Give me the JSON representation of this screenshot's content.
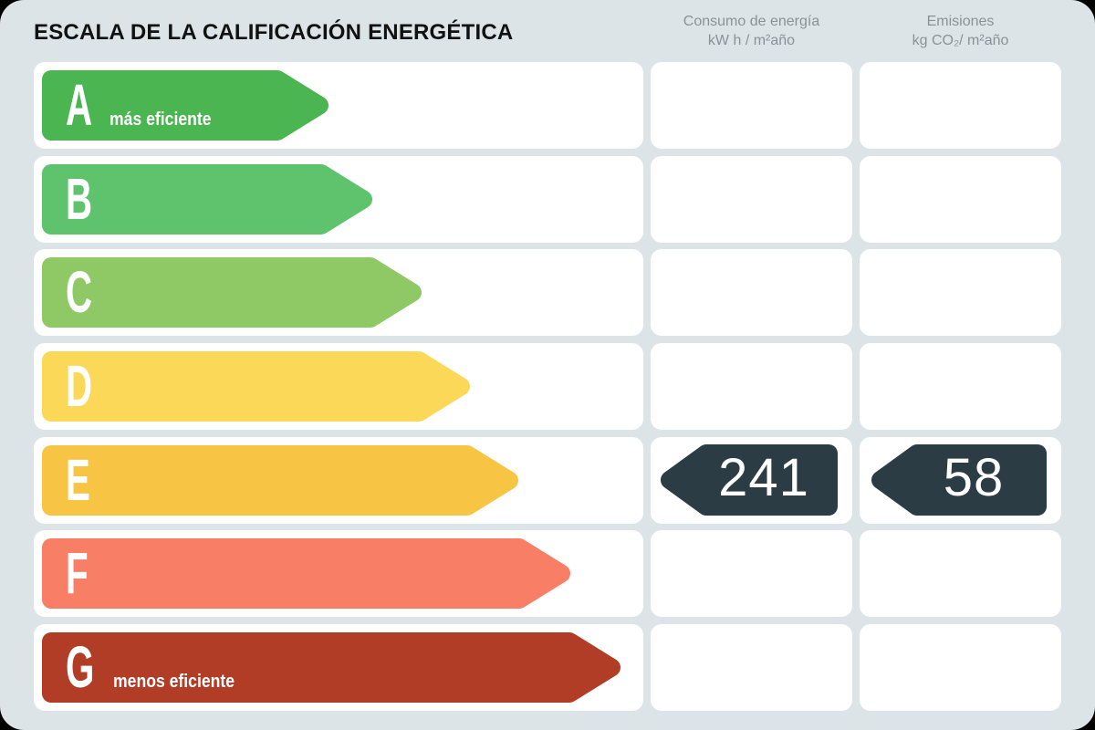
{
  "title": "ESCALA DE LA CALIFICACIÓN ENERGÉTICA",
  "columns": {
    "consumption": {
      "line1": "Consumo de energía",
      "line2": "kW h / m²año"
    },
    "emissions": {
      "line1": "Emisiones",
      "line2": "kg CO₂/ m²año"
    }
  },
  "scale": {
    "rows": [
      {
        "grade": "A",
        "label": "más eficiente",
        "color": "#4ab551",
        "arrow_width": 314
      },
      {
        "grade": "B",
        "label": "",
        "color": "#5fc36d",
        "arrow_width": 362
      },
      {
        "grade": "C",
        "label": "",
        "color": "#8ec966",
        "arrow_width": 416
      },
      {
        "grade": "D",
        "label": "",
        "color": "#fbd857",
        "arrow_width": 469
      },
      {
        "grade": "E",
        "label": "",
        "color": "#f8c444",
        "arrow_width": 522
      },
      {
        "grade": "F",
        "label": "",
        "color": "#f87f66",
        "arrow_width": 579
      },
      {
        "grade": "G",
        "label": "menos eficiente",
        "color": "#b23d27",
        "arrow_width": 634
      }
    ]
  },
  "rating": {
    "grade": "E",
    "consumption_value": "241",
    "emissions_value": "58",
    "badge_color": "#2b3c45"
  },
  "colors": {
    "background": "#dce4e8",
    "card": "#ffffff",
    "header_text": "#8a9298",
    "title_text": "#111111",
    "arrow_text": "#ffffff"
  },
  "chart_data": {
    "type": "bar",
    "title": "ESCALA DE LA CALIFICACIÓN ENERGÉTICA",
    "categories": [
      "A",
      "B",
      "C",
      "D",
      "E",
      "F",
      "G"
    ],
    "values": [
      314,
      362,
      416,
      469,
      522,
      579,
      634
    ],
    "bar_colors": [
      "#4ab551",
      "#5fc36d",
      "#8ec966",
      "#fbd857",
      "#f8c444",
      "#f87f66",
      "#b23d27"
    ],
    "value_note": "relative arrow lengths in px, A shortest to G longest",
    "annotations": [
      "A = más eficiente",
      "G = menos eficiente"
    ],
    "series": [
      {
        "name": "Consumo de energía kW h / m²año",
        "rated_grade": "E",
        "value": 241
      },
      {
        "name": "Emisiones kg CO₂/ m²año",
        "rated_grade": "E",
        "value": 58
      }
    ],
    "legend_position": "none",
    "grid": false
  }
}
